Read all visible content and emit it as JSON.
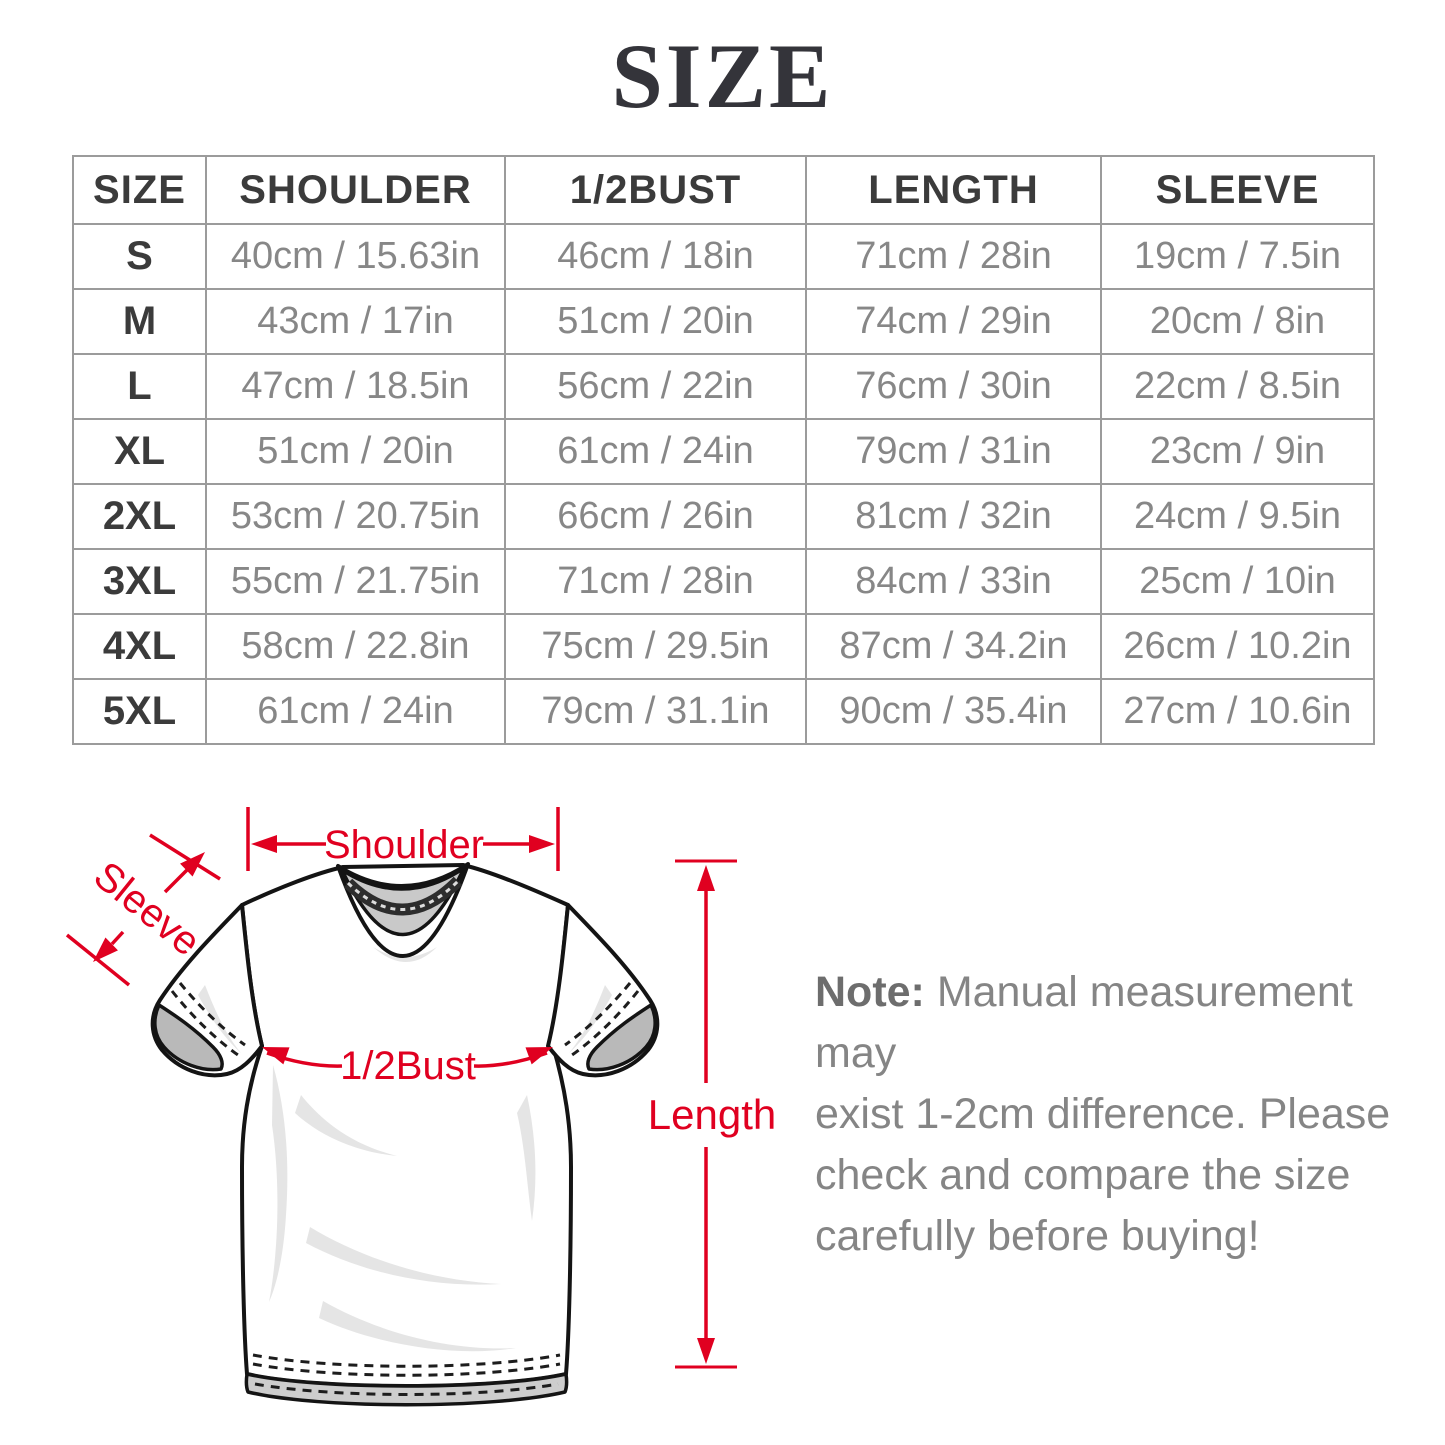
{
  "page_title": "SIZE",
  "colors": {
    "red": "#e00020",
    "table_border": "#9b9b9b",
    "dark_text": "#3b3b3b",
    "muted_text": "#878787",
    "note_text": "#858585"
  },
  "size_table": {
    "headers": [
      "SIZE",
      "SHOULDER",
      "1/2BUST",
      "LENGTH",
      "SLEEVE"
    ],
    "rows": [
      [
        "S",
        "40cm / 15.63in",
        "46cm / 18in",
        "71cm / 28in",
        "19cm / 7.5in"
      ],
      [
        "M",
        "43cm / 17in",
        "51cm / 20in",
        "74cm / 29in",
        "20cm / 8in"
      ],
      [
        "L",
        "47cm / 18.5in",
        "56cm / 22in",
        "76cm / 30in",
        "22cm / 8.5in"
      ],
      [
        "XL",
        "51cm / 20in",
        "61cm / 24in",
        "79cm / 31in",
        "23cm / 9in"
      ],
      [
        "2XL",
        "53cm / 20.75in",
        "66cm / 26in",
        "81cm / 32in",
        "24cm / 9.5in"
      ],
      [
        "3XL",
        "55cm / 21.75in",
        "71cm / 28in",
        "84cm / 33in",
        "25cm / 10in"
      ],
      [
        "4XL",
        "58cm / 22.8in",
        "75cm / 29.5in",
        "87cm / 34.2in",
        "26cm / 10.2in"
      ],
      [
        "5XL",
        "61cm / 24in",
        "79cm / 31.1in",
        "90cm / 35.4in",
        "27cm / 10.6in"
      ]
    ]
  },
  "diagram": {
    "labels": {
      "shoulder": "Shoulder",
      "sleeve": "Sleeve",
      "bust": "1/2Bust",
      "length": "Length"
    }
  },
  "note": {
    "label": "Note:",
    "lines": [
      "Manual measurement may",
      "exist 1-2cm difference. Please",
      "check and compare the size",
      "carefully before buying!"
    ]
  }
}
